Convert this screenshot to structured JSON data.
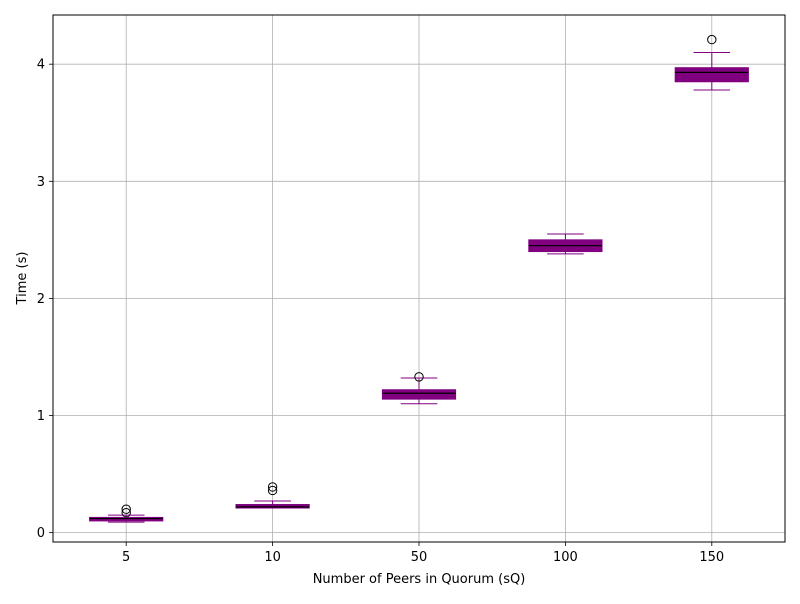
{
  "chart_data": {
    "type": "box",
    "title": "",
    "xlabel": "Number of Peers in Quorum (sQ)",
    "ylabel": "Time (s)",
    "categories": [
      "5",
      "10",
      "50",
      "100",
      "150"
    ],
    "ylim": [
      -0.08,
      4.42
    ],
    "yticks": [
      0,
      1,
      2,
      3,
      4
    ],
    "grid": true,
    "box_color": "#800080",
    "median_color": "#000000",
    "boxes": [
      {
        "category": "5",
        "whisker_low": 0.09,
        "q1": 0.1,
        "median": 0.12,
        "q3": 0.13,
        "whisker_high": 0.15,
        "outliers": [
          0.17,
          0.2
        ]
      },
      {
        "category": "10",
        "whisker_low": 0.21,
        "q1": 0.21,
        "median": 0.22,
        "q3": 0.24,
        "whisker_high": 0.27,
        "outliers": [
          0.36,
          0.39
        ]
      },
      {
        "category": "50",
        "whisker_low": 1.1,
        "q1": 1.14,
        "median": 1.19,
        "q3": 1.22,
        "whisker_high": 1.32,
        "outliers": [
          1.33
        ]
      },
      {
        "category": "100",
        "whisker_low": 2.38,
        "q1": 2.4,
        "median": 2.45,
        "q3": 2.5,
        "whisker_high": 2.55,
        "outliers": []
      },
      {
        "category": "150",
        "whisker_low": 3.78,
        "q1": 3.85,
        "median": 3.93,
        "q3": 3.97,
        "whisker_high": 4.1,
        "outliers": [
          4.21
        ]
      }
    ]
  }
}
